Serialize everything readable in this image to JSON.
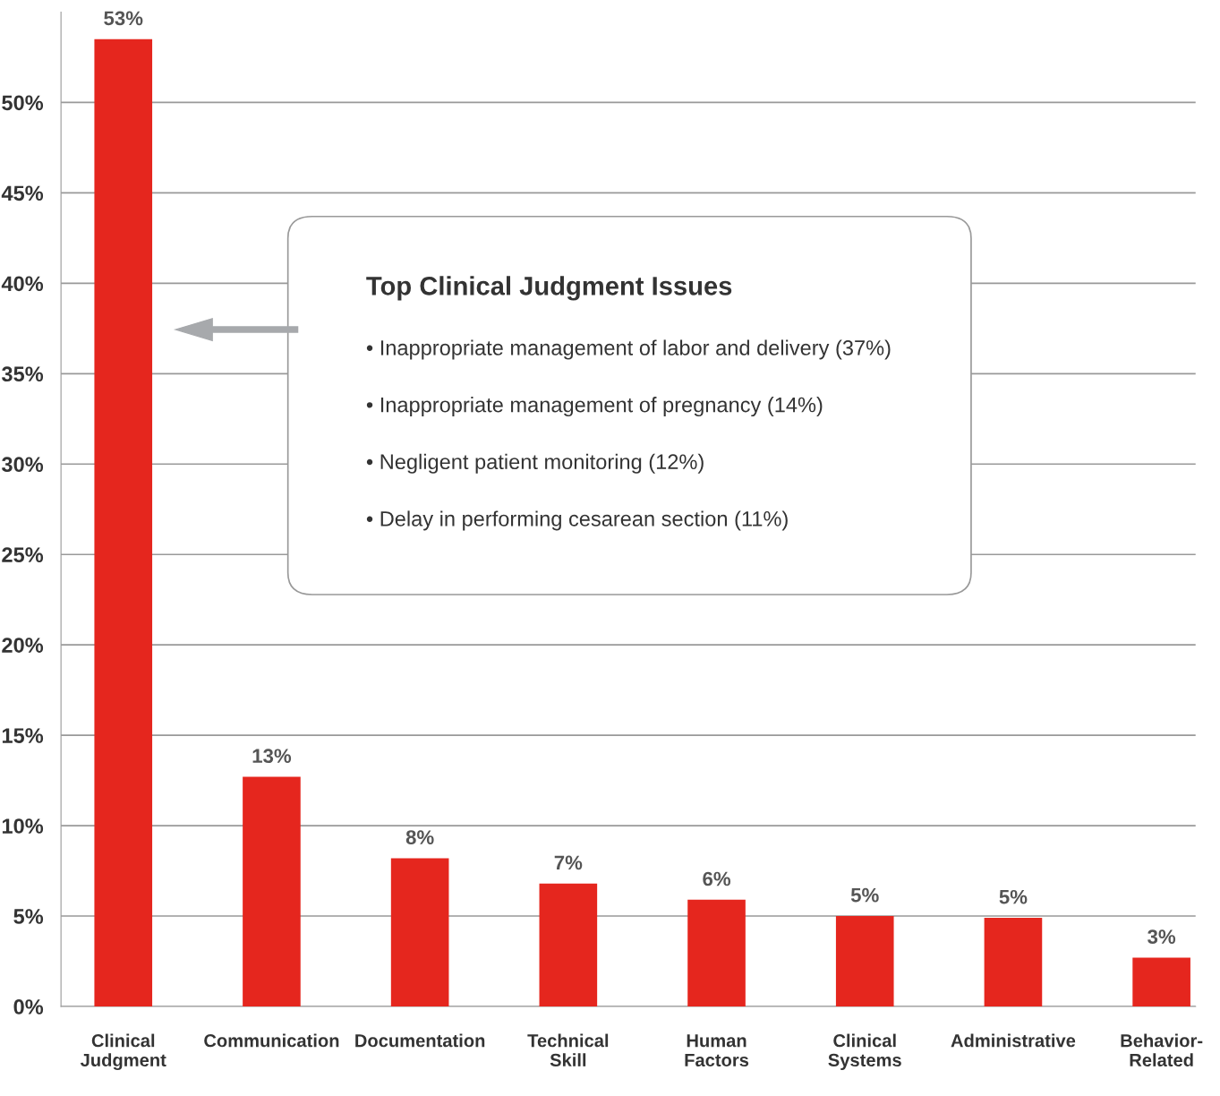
{
  "chart_data": {
    "type": "bar",
    "categories": [
      "Clinical\nJudgment",
      "Communication",
      "Documentation",
      "Technical\nSkill",
      "Human\nFactors",
      "Clinical\nSystems",
      "Administrative",
      "Behavior-\nRelated"
    ],
    "values": [
      53.5,
      12.7,
      8.2,
      6.8,
      5.9,
      5.0,
      4.9,
      2.7
    ],
    "value_labels": [
      "53%",
      "13%",
      "8%",
      "7%",
      "6%",
      "5%",
      "5%",
      "3%"
    ],
    "color": "#e5261e",
    "ylim": [
      0,
      55
    ],
    "yticks": [
      {
        "value": 0,
        "label": "0%"
      },
      {
        "value": 5,
        "label": "5%"
      },
      {
        "value": 10,
        "label": "10%"
      },
      {
        "value": 15,
        "label": "15%"
      },
      {
        "value": 20,
        "label": "20%"
      },
      {
        "value": 25,
        "label": "25%"
      },
      {
        "value": 30,
        "label": "30%"
      },
      {
        "value": 35,
        "label": "35%"
      },
      {
        "value": 40,
        "label": "40%"
      },
      {
        "value": 45,
        "label": "45%"
      },
      {
        "value": 50,
        "label": "50%"
      }
    ],
    "grid": "y",
    "legend": false,
    "annotations": [
      "Top Clinical Judgment Issues",
      "• Inappropriate management of labor and delivery (37%)",
      "• Inappropriate management of pregnancy (14%)",
      "• Negligent patient monitoring (12%)",
      "• Delay in performing cesarean section (11%)"
    ]
  }
}
